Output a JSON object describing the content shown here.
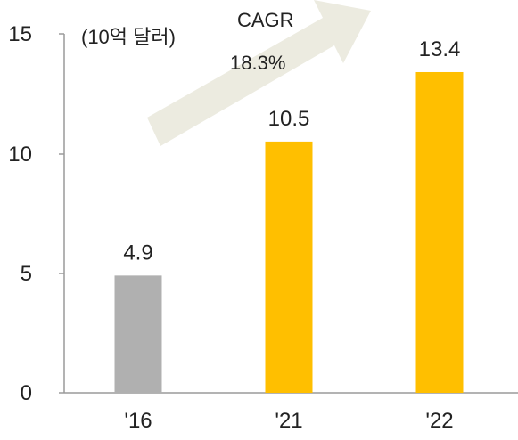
{
  "chart_data": {
    "type": "bar",
    "unit_label": "(10억 달러)",
    "categories": [
      "'16",
      "'21",
      "'22"
    ],
    "values": [
      4.9,
      10.5,
      13.4
    ],
    "data_labels": [
      "4.9",
      "10.5",
      "13.4"
    ],
    "y_ticks": [
      "0",
      "5",
      "10",
      "15"
    ],
    "ylim": [
      0,
      15
    ],
    "colors": [
      "#b0b0b0",
      "#ffbf00",
      "#ffbf00"
    ],
    "arrow_color": "#ecebe0",
    "annotation": {
      "title": "CAGR",
      "value": "18.3%"
    },
    "grid": false,
    "legend": "none"
  }
}
